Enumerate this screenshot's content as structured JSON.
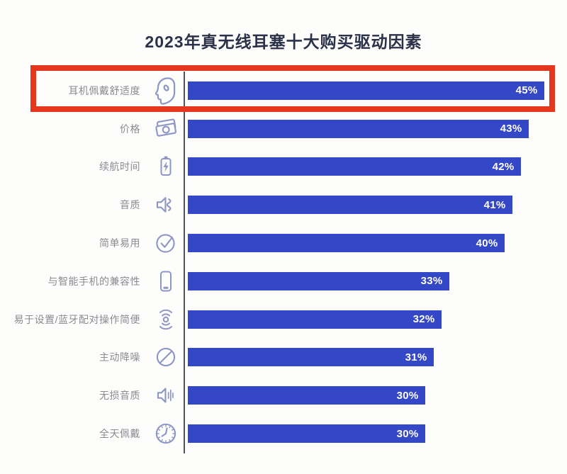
{
  "title": {
    "text": "2023年真无线耳塞十大购买驱动因素"
  },
  "colors": {
    "background": "#FDFDFB",
    "bar": "#3447C6",
    "bar_value_text": "#FFFFFF",
    "category_label": "#8A8B93",
    "icon": "#8E96C5",
    "title_text": "#2A3148",
    "axis_line": "#50545F",
    "highlight_outline": "#E5371E"
  },
  "chart_data": {
    "type": "bar",
    "orientation": "horizontal",
    "title": "2023年真无线耳塞十大购买驱动因素",
    "value_unit": "%",
    "xlim": [
      0,
      50
    ],
    "grid": false,
    "legend": false,
    "highlighted_row": "耳机佩戴舒适度",
    "highlight_style": "red-outline-box",
    "rows": [
      {
        "label": "耳机佩戴舒适度",
        "value": 45,
        "value_label": "45%",
        "icon": "head-profile"
      },
      {
        "label": "价格",
        "value": 43,
        "value_label": "43%",
        "icon": "banknotes"
      },
      {
        "label": "续航时间",
        "value": 42,
        "value_label": "42%",
        "icon": "battery"
      },
      {
        "label": "音质",
        "value": 41,
        "value_label": "41%",
        "icon": "speaker-wave"
      },
      {
        "label": "简单易用",
        "value": 40,
        "value_label": "40%",
        "icon": "check-circle"
      },
      {
        "label": "与智能手机的兼容性",
        "value": 33,
        "value_label": "33%",
        "icon": "smartphone"
      },
      {
        "label": "易于设置/蓝牙配对操作简便",
        "value": 32,
        "value_label": "32%",
        "icon": "wireless-signal"
      },
      {
        "label": "主动降噪",
        "value": 31,
        "value_label": "31%",
        "icon": "no-sign"
      },
      {
        "label": "无损音质",
        "value": 30,
        "value_label": "30%",
        "icon": "speaker-lines"
      },
      {
        "label": "全天佩戴",
        "value": 30,
        "value_label": "30%",
        "icon": "clock"
      }
    ]
  }
}
